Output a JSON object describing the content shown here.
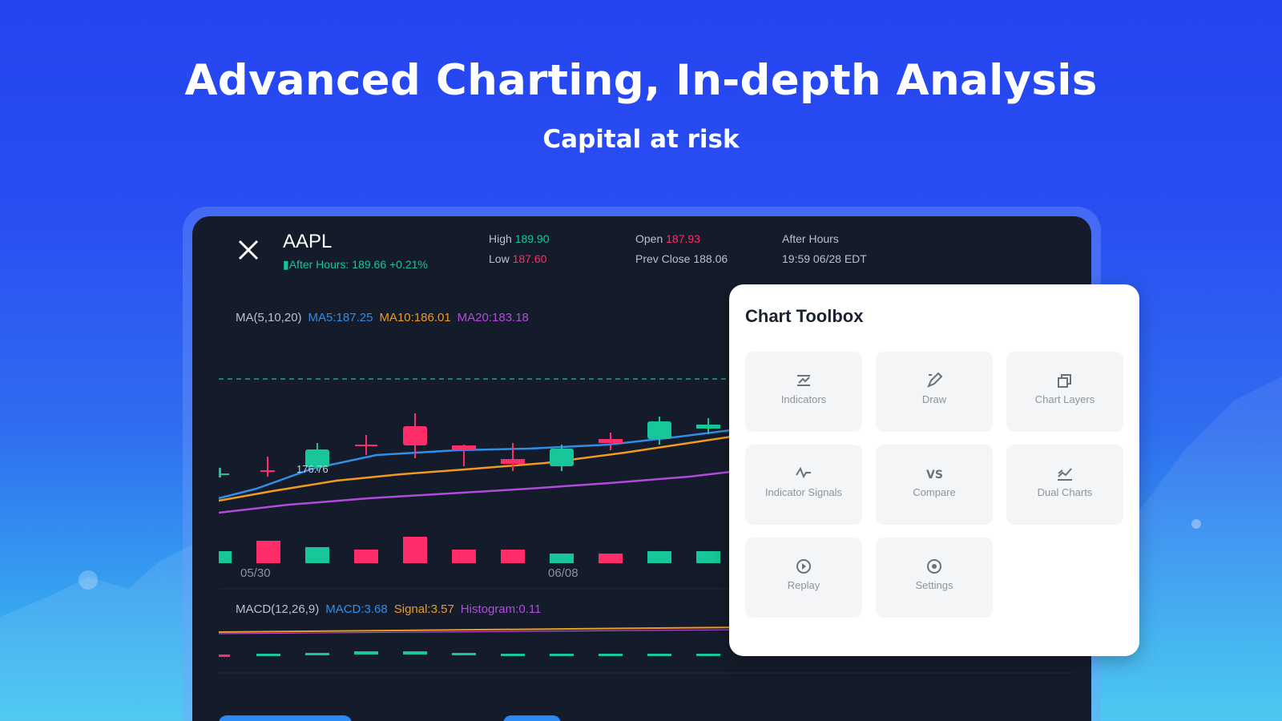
{
  "promo": {
    "headline": "Advanced Charting, In-depth Analysis",
    "subhead": "Capital at risk"
  },
  "quote": {
    "ticker": "AAPL",
    "after_hours_line": "After Hours: 189.66 +0.21%",
    "high_label": "High",
    "high_value": "189.90",
    "low_label": "Low",
    "low_value": "187.60",
    "open_label": "Open",
    "open_value": "187.93",
    "prev_close_label": "Prev Close",
    "prev_close_value": "188.06",
    "after_hours_label": "After Hours",
    "after_hours_time": "19:59 06/28 EDT"
  },
  "ma_legend": {
    "label": "MA(5,10,20)",
    "ma5": "MA5:187.25",
    "ma10": "MA10:186.01",
    "ma20": "MA20:183.18"
  },
  "macd_legend": {
    "label": "MACD(12,26,9)",
    "macd": "MACD:3.68",
    "signal": "Signal:3.57",
    "histogram": "Histogram:0.11"
  },
  "chart_labels": {
    "price_tag": "176.76",
    "dates": [
      "05/30",
      "06/08"
    ]
  },
  "colors": {
    "up": "#17c79a",
    "down": "#ff2d6a",
    "ma5": "#2f8fe6",
    "ma10": "#f39a1e",
    "ma20": "#b14bdc"
  },
  "toolbox": {
    "title": "Chart Toolbox",
    "items": [
      {
        "label": "Indicators",
        "icon": "indicators-icon"
      },
      {
        "label": "Draw",
        "icon": "pencil-icon"
      },
      {
        "label": "Chart Layers",
        "icon": "layers-icon"
      },
      {
        "label": "Indicator Signals",
        "icon": "signal-icon"
      },
      {
        "label": "Compare",
        "icon": "vs-icon"
      },
      {
        "label": "Dual Charts",
        "icon": "dual-charts-icon"
      },
      {
        "label": "Replay",
        "icon": "replay-icon"
      },
      {
        "label": "Settings",
        "icon": "gear-icon"
      }
    ]
  }
}
